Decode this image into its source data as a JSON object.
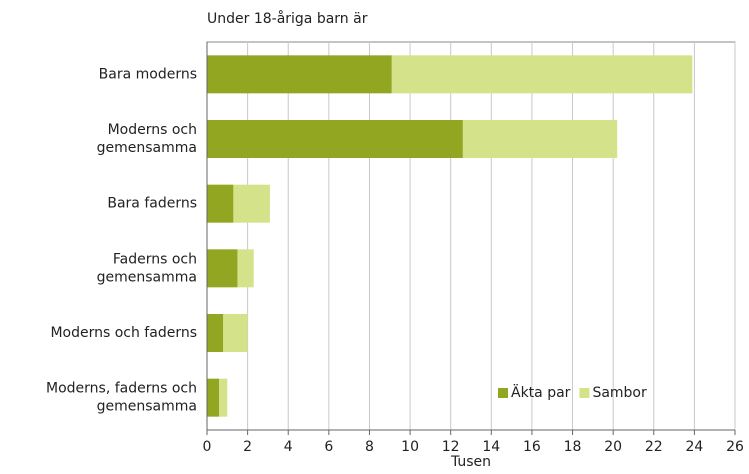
{
  "chart_data": {
    "type": "stacked-hbar",
    "title": "Under 18-åriga barn är",
    "x_label": "Tusen",
    "categories": [
      "Bara moderns",
      "Moderns och\ngemensamma",
      "Bara faderns",
      "Faderns och\ngemensamma",
      "Moderns och faderns",
      "Moderns, faderns och\ngemensamma"
    ],
    "series": [
      {
        "name": "Äkta par",
        "color": "#93a621",
        "values": [
          9.1,
          12.6,
          1.3,
          1.5,
          0.8,
          0.6
        ]
      },
      {
        "name": "Sambor",
        "color": "#d4e38a",
        "values": [
          14.8,
          7.6,
          1.8,
          0.8,
          1.2,
          0.4
        ]
      }
    ],
    "xlim": [
      0,
      26
    ],
    "xticks": [
      0,
      2,
      4,
      6,
      8,
      10,
      12,
      14,
      16,
      18,
      20,
      22,
      24,
      26
    ],
    "grid": true,
    "legend": "bottom-right"
  }
}
